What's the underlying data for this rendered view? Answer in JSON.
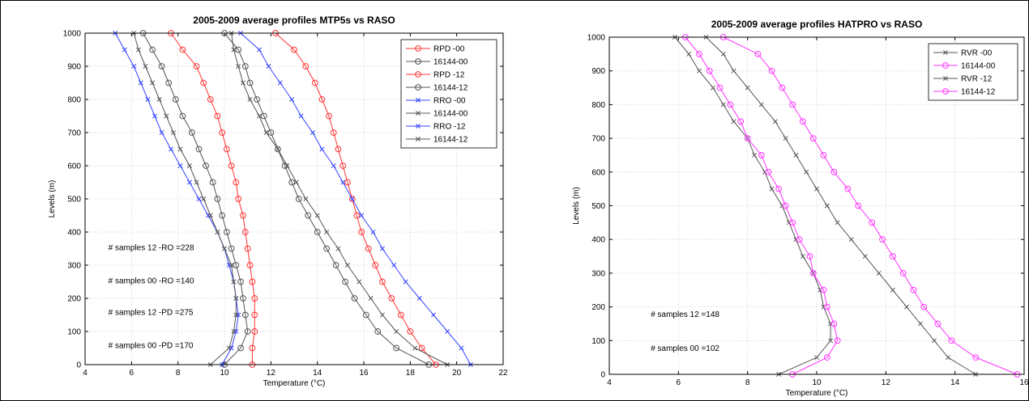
{
  "charts": [
    {
      "type": "line",
      "title": "2005-2009 average profiles MTP5s vs RASO",
      "xlabel": "Temperature (°C)",
      "ylabel": "Levels (m)",
      "xlim": [
        4,
        22
      ],
      "ylim": [
        0,
        1000
      ],
      "xticks": [
        4,
        6,
        8,
        10,
        12,
        14,
        16,
        18,
        20,
        22
      ],
      "yticks": [
        0,
        100,
        200,
        300,
        400,
        500,
        600,
        700,
        800,
        900,
        1000
      ],
      "grid": true,
      "legend_position": "top-right",
      "annotations": [
        {
          "text": "# samples 12 -RO =228",
          "x": 5.0,
          "y": 345
        },
        {
          "text": "# samples 00 -RO =140",
          "x": 5.0,
          "y": 245
        },
        {
          "text": "# samples 12 -PD =275",
          "x": 5.0,
          "y": 150
        },
        {
          "text": "# samples 00 -PD =170",
          "x": 5.0,
          "y": 50
        }
      ],
      "series": [
        {
          "name": "RPD  -00",
          "color": "#ff3333",
          "marker": "circle",
          "y": [
            0,
            50,
            100,
            150,
            200,
            250,
            300,
            350,
            400,
            450,
            500,
            550,
            600,
            650,
            700,
            750,
            800,
            850,
            900,
            950,
            1000
          ],
          "x": [
            19.1,
            18.5,
            18.0,
            17.6,
            17.2,
            16.8,
            16.5,
            16.2,
            15.9,
            15.7,
            15.5,
            15.3,
            15.1,
            14.9,
            14.7,
            14.5,
            14.2,
            13.9,
            13.5,
            13.0,
            12.2
          ]
        },
        {
          "name": "16144-00",
          "color": "#555555",
          "marker": "circle",
          "y": [
            0,
            50,
            100,
            150,
            200,
            250,
            300,
            350,
            400,
            450,
            500,
            550,
            600,
            650,
            700,
            750,
            800,
            850,
            900,
            950,
            1000
          ],
          "x": [
            18.8,
            17.4,
            16.6,
            16.1,
            15.6,
            15.2,
            14.8,
            14.4,
            14.0,
            13.6,
            13.2,
            12.9,
            12.6,
            12.3,
            12.0,
            11.7,
            11.4,
            11.1,
            10.9,
            10.6,
            10.0
          ]
        },
        {
          "name": "RPD  -12",
          "color": "#ff3333",
          "marker": "circle",
          "y": [
            0,
            50,
            100,
            150,
            200,
            250,
            300,
            350,
            400,
            450,
            500,
            550,
            600,
            650,
            700,
            750,
            800,
            850,
            900,
            950,
            1000
          ],
          "x": [
            11.2,
            11.2,
            11.3,
            11.3,
            11.3,
            11.2,
            11.1,
            11.0,
            10.9,
            10.8,
            10.6,
            10.5,
            10.3,
            10.1,
            9.9,
            9.7,
            9.4,
            9.1,
            8.8,
            8.2,
            7.7
          ]
        },
        {
          "name": "16144-12",
          "color": "#555555",
          "marker": "circle",
          "y": [
            0,
            50,
            100,
            150,
            200,
            250,
            300,
            350,
            400,
            450,
            500,
            550,
            600,
            650,
            700,
            750,
            800,
            850,
            900,
            950,
            1000
          ],
          "x": [
            10.0,
            10.7,
            11.0,
            10.9,
            10.8,
            10.7,
            10.5,
            10.3,
            10.1,
            9.9,
            9.7,
            9.5,
            9.2,
            8.9,
            8.6,
            8.2,
            7.9,
            7.6,
            7.3,
            6.9,
            6.5
          ]
        },
        {
          "name": "RRO  -00",
          "color": "#3344ff",
          "marker": "x",
          "y": [
            0,
            50,
            100,
            150,
            200,
            250,
            300,
            350,
            400,
            450,
            500,
            550,
            600,
            650,
            700,
            750,
            800,
            850,
            900,
            950,
            1000
          ],
          "x": [
            20.6,
            20.2,
            19.6,
            19.0,
            18.4,
            17.8,
            17.3,
            16.8,
            16.4,
            15.9,
            15.5,
            15.1,
            14.7,
            14.2,
            13.8,
            13.3,
            12.9,
            12.4,
            11.9,
            11.5,
            10.7
          ]
        },
        {
          "name": "16144-00",
          "color": "#555555",
          "marker": "x",
          "y": [
            0,
            50,
            100,
            150,
            200,
            250,
            300,
            350,
            400,
            450,
            500,
            550,
            600,
            650,
            700,
            750,
            800,
            850,
            900,
            950,
            1000
          ],
          "x": [
            19.6,
            18.2,
            17.4,
            16.8,
            16.3,
            15.8,
            15.3,
            14.9,
            14.4,
            14.0,
            13.5,
            13.1,
            12.7,
            12.3,
            11.8,
            11.5,
            11.1,
            10.8,
            10.6,
            10.4,
            10.3
          ]
        },
        {
          "name": "RRO  -12",
          "color": "#3344ff",
          "marker": "x",
          "y": [
            0,
            50,
            100,
            150,
            200,
            250,
            300,
            350,
            400,
            450,
            500,
            550,
            600,
            650,
            700,
            750,
            800,
            850,
            900,
            950,
            1000
          ],
          "x": [
            9.9,
            10.3,
            10.5,
            10.6,
            10.5,
            10.4,
            10.2,
            10.0,
            9.7,
            9.3,
            8.9,
            8.5,
            8.1,
            7.7,
            7.3,
            7.0,
            6.7,
            6.4,
            6.1,
            5.7,
            5.3
          ]
        },
        {
          "name": "16144-12",
          "color": "#555555",
          "marker": "x",
          "y": [
            0,
            50,
            100,
            150,
            200,
            250,
            300,
            350,
            400,
            450,
            500,
            550,
            600,
            650,
            700,
            750,
            800,
            850,
            900,
            950,
            1000
          ],
          "x": [
            9.4,
            10.2,
            10.4,
            10.5,
            10.5,
            10.4,
            10.3,
            10.0,
            9.7,
            9.4,
            9.1,
            8.8,
            8.5,
            8.1,
            7.8,
            7.5,
            7.2,
            6.9,
            6.6,
            6.3,
            6.1
          ]
        }
      ]
    },
    {
      "type": "line",
      "title": "2005-2009 average profiles HATPRO vs RASO",
      "xlabel": "Temperature (°C)",
      "ylabel": "Levels (m)",
      "xlim": [
        4,
        16
      ],
      "ylim": [
        0,
        1000
      ],
      "xticks": [
        4,
        6,
        8,
        10,
        12,
        14,
        16
      ],
      "yticks": [
        0,
        100,
        200,
        300,
        400,
        500,
        600,
        700,
        800,
        900,
        1000
      ],
      "grid": true,
      "legend_position": "top-right",
      "annotations": [
        {
          "text": "# samples 12 =148",
          "x": 5.2,
          "y": 170
        },
        {
          "text": "# samples 00 =102",
          "x": 5.2,
          "y": 70
        }
      ],
      "series": [
        {
          "name": "RVR  -00",
          "color": "#555555",
          "marker": "x",
          "y": [
            0,
            50,
            100,
            150,
            200,
            250,
            300,
            350,
            400,
            450,
            500,
            550,
            600,
            650,
            700,
            750,
            800,
            850,
            900,
            950,
            1000
          ],
          "x": [
            14.6,
            13.8,
            13.4,
            13.0,
            12.6,
            12.2,
            11.8,
            11.4,
            11.0,
            10.6,
            10.3,
            10.0,
            9.7,
            9.4,
            9.1,
            8.8,
            8.4,
            8.0,
            7.6,
            7.3,
            6.8
          ]
        },
        {
          "name": "16144-00",
          "color": "#ff33ff",
          "marker": "circle",
          "y": [
            0,
            50,
            100,
            150,
            200,
            250,
            300,
            350,
            400,
            450,
            500,
            550,
            600,
            650,
            700,
            750,
            800,
            850,
            900,
            950,
            1000
          ],
          "x": [
            15.8,
            14.6,
            13.9,
            13.5,
            13.1,
            12.8,
            12.5,
            12.2,
            11.9,
            11.6,
            11.2,
            10.9,
            10.5,
            10.2,
            9.9,
            9.6,
            9.3,
            9.0,
            8.7,
            8.3,
            7.3
          ]
        },
        {
          "name": "RVR  -12",
          "color": "#555555",
          "marker": "x",
          "y": [
            0,
            50,
            100,
            150,
            200,
            250,
            300,
            350,
            400,
            450,
            500,
            550,
            600,
            650,
            700,
            750,
            800,
            850,
            900,
            950,
            1000
          ],
          "x": [
            8.9,
            10.0,
            10.4,
            10.4,
            10.2,
            10.1,
            9.9,
            9.6,
            9.4,
            9.2,
            9.0,
            8.7,
            8.5,
            8.2,
            8.0,
            7.6,
            7.3,
            7.0,
            6.6,
            6.3,
            5.9
          ]
        },
        {
          "name": "16144-12",
          "color": "#ff33ff",
          "marker": "circle",
          "y": [
            0,
            50,
            100,
            150,
            200,
            250,
            300,
            350,
            400,
            450,
            500,
            550,
            600,
            650,
            700,
            750,
            800,
            850,
            900,
            950,
            1000
          ],
          "x": [
            9.3,
            10.3,
            10.6,
            10.5,
            10.3,
            10.2,
            9.9,
            9.8,
            9.5,
            9.3,
            9.1,
            8.9,
            8.6,
            8.4,
            8.0,
            7.8,
            7.5,
            7.2,
            6.9,
            6.6,
            6.2
          ]
        }
      ]
    }
  ]
}
